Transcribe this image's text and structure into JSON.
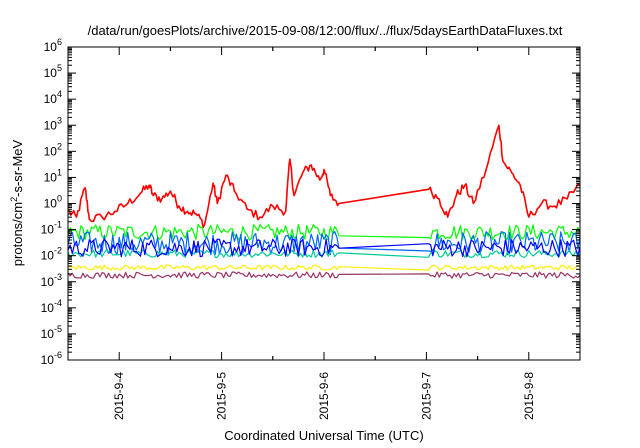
{
  "chart_data": {
    "type": "line",
    "title": "/data/run/goesPlots/archive/2015-09-08/12:00/flux/../flux/5daysEarthDataFluxes.txt",
    "xlabel": "Coordinated Universal Time (UTC)",
    "ylabel_parts": {
      "base": "protons/cm",
      "sup": "2",
      "rest": "-s-sr-MeV"
    },
    "yscale": "log",
    "ylim": [
      1e-06,
      1000000.0
    ],
    "y_ticks": [
      {
        "exp": -6
      },
      {
        "exp": -5
      },
      {
        "exp": -4
      },
      {
        "exp": -3
      },
      {
        "exp": -2
      },
      {
        "exp": -1
      },
      {
        "exp": 0
      },
      {
        "exp": 1
      },
      {
        "exp": 2
      },
      {
        "exp": 3
      },
      {
        "exp": 4
      },
      {
        "exp": 5
      },
      {
        "exp": 6
      }
    ],
    "x_range_days": [
      "2015-09-03T12:00",
      "2015-09-08T12:00"
    ],
    "x_ticks": [
      "2015-9-4",
      "2015-9-5",
      "2015-9-6",
      "2015-9-7",
      "2015-9-8"
    ],
    "data_gap": [
      "2015-09-06T03:30",
      "2015-09-07T00:30"
    ],
    "grid": false,
    "legend": "none",
    "series": [
      {
        "color": "#ff0000",
        "points": [
          [
            "2015-09-03T12:00",
            0.5
          ],
          [
            "2015-09-03T14:00",
            0.3
          ],
          [
            "2015-09-03T16:00",
            4.0
          ],
          [
            "2015-09-03T17:00",
            0.25
          ],
          [
            "2015-09-03T20:00",
            0.3
          ],
          [
            "2015-09-03T23:00",
            0.5
          ],
          [
            "2015-09-04T02:00",
            1.0
          ],
          [
            "2015-09-04T05:00",
            2.5
          ],
          [
            "2015-09-04T07:00",
            5.0
          ],
          [
            "2015-09-04T08:00",
            2.0
          ],
          [
            "2015-09-04T10:00",
            1.5
          ],
          [
            "2015-09-04T12:00",
            3.0
          ],
          [
            "2015-09-04T14:00",
            0.8
          ],
          [
            "2015-09-04T16:00",
            0.5
          ],
          [
            "2015-09-04T18:00",
            0.4
          ],
          [
            "2015-09-04T20:00",
            0.15
          ],
          [
            "2015-09-04T22:00",
            6.0
          ],
          [
            "2015-09-04T23:00",
            1.0
          ],
          [
            "2015-09-05T01:00",
            12.0
          ],
          [
            "2015-09-05T03:00",
            3.0
          ],
          [
            "2015-09-05T06:00",
            0.6
          ],
          [
            "2015-09-05T09:00",
            0.3
          ],
          [
            "2015-09-05T12:00",
            0.8
          ],
          [
            "2015-09-05T15:00",
            0.5
          ],
          [
            "2015-09-05T16:00",
            50.0
          ],
          [
            "2015-09-05T17:00",
            2.0
          ],
          [
            "2015-09-05T19:00",
            15.0
          ],
          [
            "2015-09-05T21:00",
            30.0
          ],
          [
            "2015-09-05T23:00",
            8.0
          ],
          [
            "2015-09-06T00:00",
            20.0
          ],
          [
            "2015-09-06T01:30",
            2.0
          ],
          [
            "2015-09-06T03:30",
            1.0
          ],
          [
            "2015-09-07T00:30",
            3.5
          ],
          [
            "2015-09-07T03:00",
            1.5
          ],
          [
            "2015-09-07T05:00",
            0.3
          ],
          [
            "2015-09-07T07:00",
            2.0
          ],
          [
            "2015-09-07T09:00",
            5.0
          ],
          [
            "2015-09-07T11:00",
            1.0
          ],
          [
            "2015-09-07T14:00",
            20.0
          ],
          [
            "2015-09-07T17:00",
            1000.0
          ],
          [
            "2015-09-07T18:00",
            40.0
          ],
          [
            "2015-09-07T20:00",
            15.0
          ],
          [
            "2015-09-07T22:00",
            5.0
          ],
          [
            "2015-09-08T00:00",
            0.3
          ],
          [
            "2015-09-08T03:00",
            1.0
          ],
          [
            "2015-09-08T06:00",
            0.8
          ],
          [
            "2015-09-08T09:00",
            1.5
          ],
          [
            "2015-09-08T12:00",
            5.0
          ]
        ]
      },
      {
        "color": "#00ff00",
        "level": 0.08,
        "noise": 0.3
      },
      {
        "color": "#0066ff",
        "level": 0.03,
        "noise": 0.45
      },
      {
        "color": "#00cc99",
        "level": 0.012,
        "noise": 0.15
      },
      {
        "color": "#0000ff",
        "level": 0.02,
        "noise": 0.35
      },
      {
        "color": "#ffee00",
        "level": 0.0035,
        "noise": 0.1
      },
      {
        "color": "#993366",
        "level": 0.0018,
        "noise": 0.12
      }
    ]
  }
}
